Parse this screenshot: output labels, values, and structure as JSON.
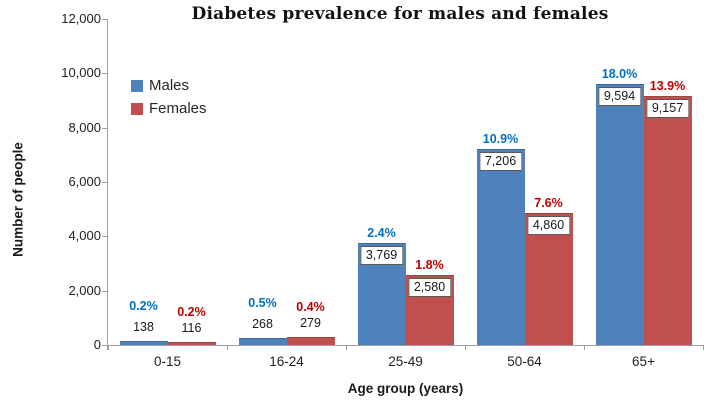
{
  "chart_data": {
    "type": "bar",
    "title": "Diabetes prevalence for males and females",
    "xlabel": "Age group (years)",
    "ylabel": "Number of people",
    "categories": [
      "0-15",
      "16-24",
      "25-49",
      "50-64",
      "65+"
    ],
    "series": [
      {
        "name": "Males",
        "color": "#4F81BD",
        "edge_color": "#3A6CA3",
        "pct_color": "#0070C0",
        "values": [
          138,
          268,
          3769,
          7206,
          9594
        ],
        "value_labels": [
          "138",
          "268",
          "3,769",
          "7,206",
          "9,594"
        ],
        "pct_values": [
          0.2,
          0.5,
          2.4,
          10.9,
          18.0
        ],
        "pct_labels": [
          "0.2%",
          "0.5%",
          "2.4%",
          "10.9%",
          "18.0%"
        ]
      },
      {
        "name": "Females",
        "color": "#C0504D",
        "edge_color": "#A8413E",
        "pct_color": "#C00000",
        "values": [
          116,
          279,
          2580,
          4860,
          9157
        ],
        "value_labels": [
          "116",
          "279",
          "2,580",
          "4,860",
          "9,157"
        ],
        "pct_values": [
          0.2,
          0.4,
          1.8,
          7.6,
          13.9
        ],
        "pct_labels": [
          "0.2%",
          "0.4%",
          "1.8%",
          "7.6%",
          "13.9%"
        ]
      }
    ],
    "ylim": [
      0,
      12000
    ],
    "y_tick_step": 2000,
    "y_tick_labels": [
      "0",
      "2,000",
      "4,000",
      "6,000",
      "8,000",
      "10,000",
      "12,000"
    ],
    "grid": false,
    "legend_position": "upper-left-inside"
  },
  "legend": [
    {
      "label": "Males",
      "color": "#4F81BD"
    },
    {
      "label": "Females",
      "color": "#C0504D"
    }
  ]
}
